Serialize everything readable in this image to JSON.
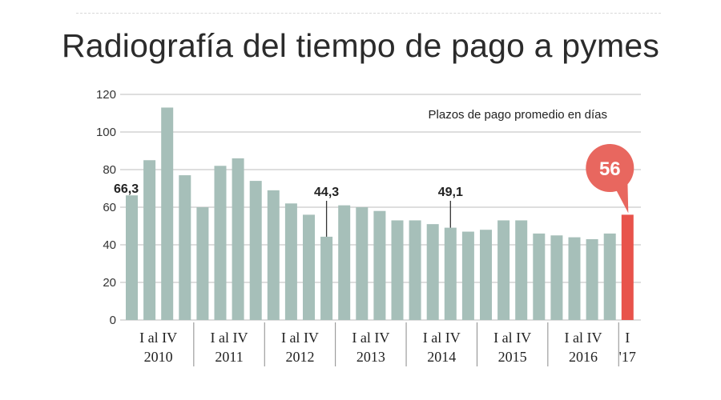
{
  "chart_data": {
    "type": "bar",
    "title": "Radiografía del tiempo de pago a pymes",
    "subtitle": "Plazos de pago promedio en días",
    "ylim": [
      0,
      120
    ],
    "yticks": [
      0,
      20,
      40,
      60,
      80,
      100,
      120
    ],
    "values": [
      66.3,
      85,
      113,
      77,
      60,
      82,
      86,
      74,
      69,
      62,
      56,
      44.3,
      61,
      60,
      58,
      53,
      53,
      51,
      49.1,
      47,
      48,
      53,
      53,
      46,
      45,
      44,
      43,
      46,
      56
    ],
    "groups": [
      {
        "quarters": "I al IV",
        "year": "2010",
        "count": 4
      },
      {
        "quarters": "I al IV",
        "year": "2011",
        "count": 4
      },
      {
        "quarters": "I al IV",
        "year": "2012",
        "count": 4
      },
      {
        "quarters": "I al IV",
        "year": "2013",
        "count": 4
      },
      {
        "quarters": "I al IV",
        "year": "2014",
        "count": 4
      },
      {
        "quarters": "I al IV",
        "year": "2015",
        "count": 4
      },
      {
        "quarters": "I al IV",
        "year": "2016",
        "count": 4
      },
      {
        "quarters": "I",
        "year": "'17",
        "count": 1
      }
    ],
    "annotations": [
      {
        "index": 0,
        "label": "66,3"
      },
      {
        "index": 11,
        "label": "44,3"
      },
      {
        "index": 18,
        "label": "49,1"
      }
    ],
    "highlight": {
      "index": 28,
      "label": "56"
    }
  },
  "colors": {
    "bar": "#a6bfb9",
    "highlight": "#e8534b",
    "bubble": "#e8675f",
    "grid": "#bdbdbd"
  }
}
